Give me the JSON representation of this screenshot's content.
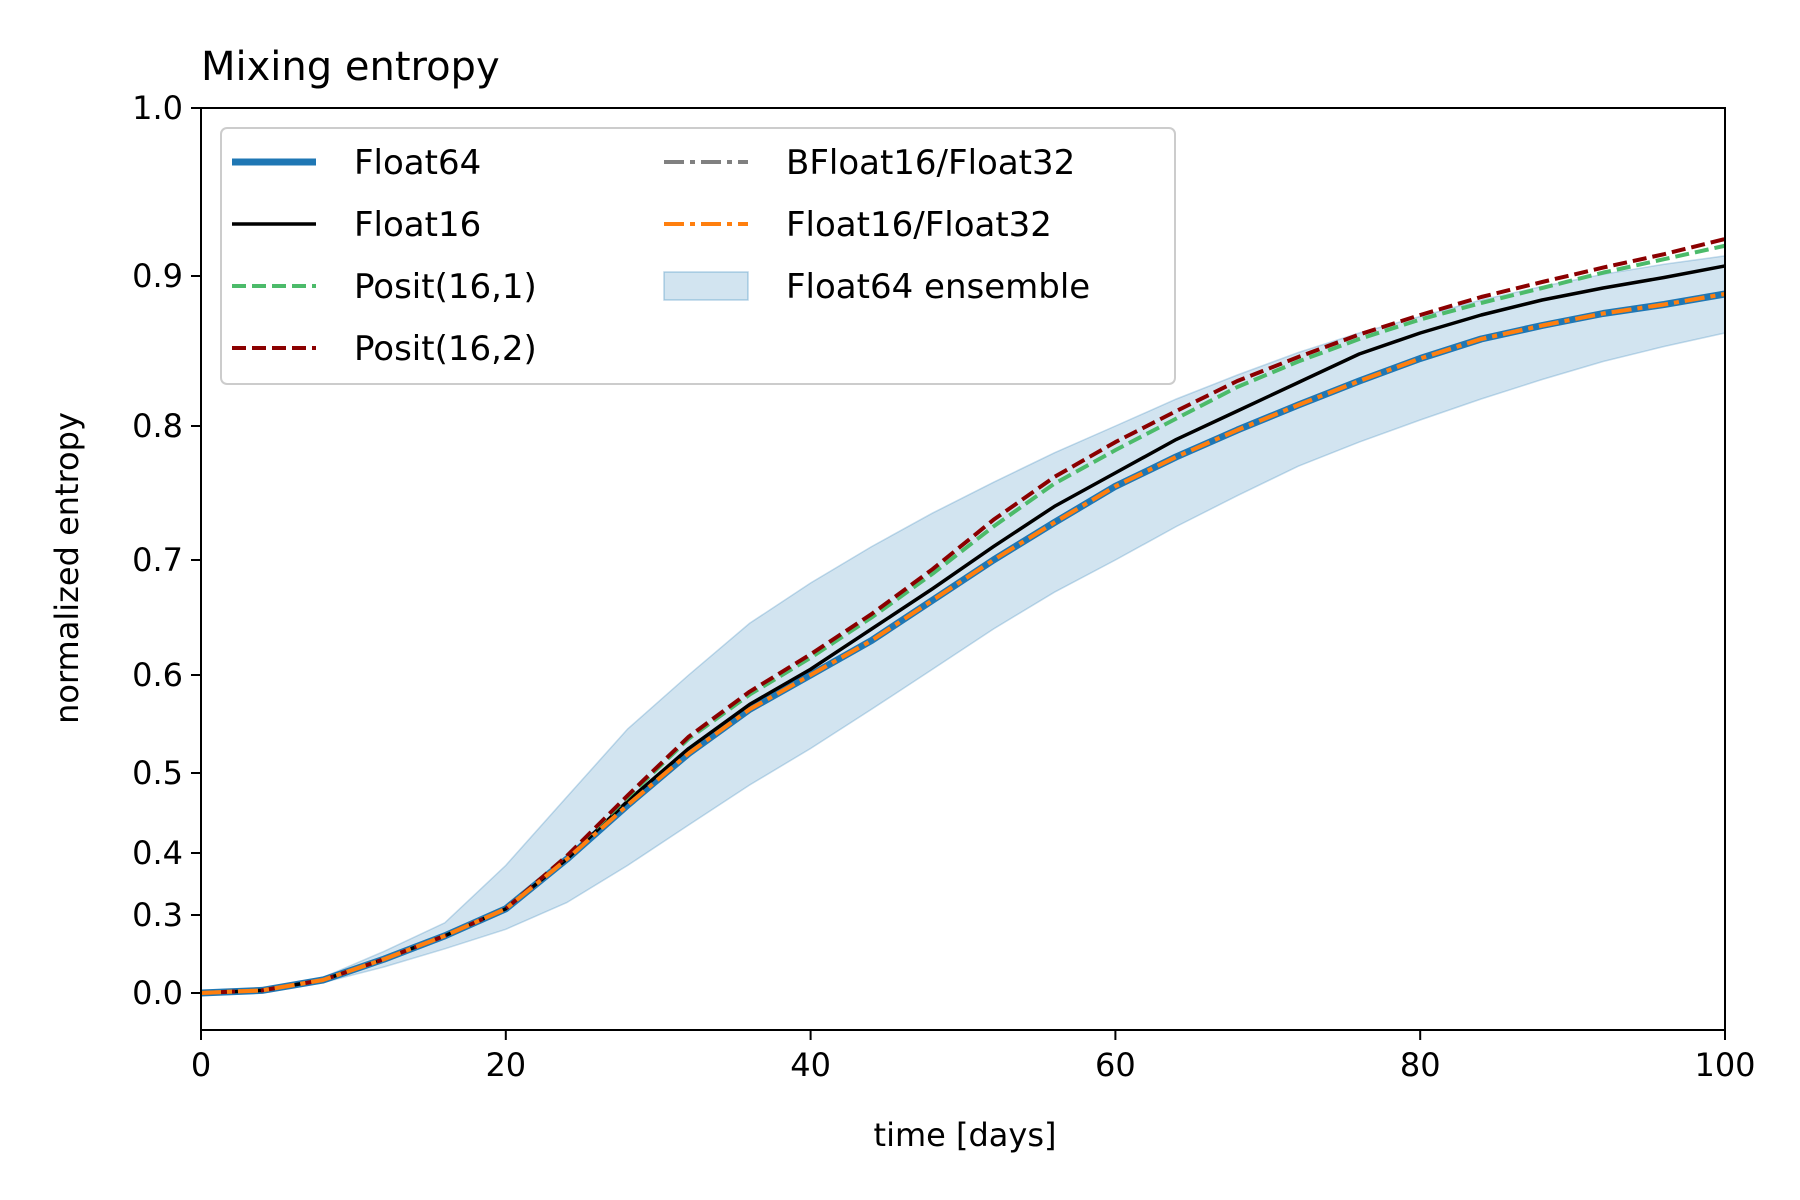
{
  "chart_data": {
    "type": "line",
    "title": "Mixing entropy",
    "xlabel": "time [days]",
    "ylabel": "normalized entropy",
    "xlim": [
      0,
      100
    ],
    "ylim": [
      -0.05,
      1.0
    ],
    "y_scale": "nonlinear (tick labels unevenly spaced)",
    "xticks": [
      0,
      20,
      40,
      60,
      80,
      100
    ],
    "xtick_labels": [
      "0",
      "20",
      "40",
      "60",
      "80",
      "100"
    ],
    "yticks": [
      0.0,
      0.3,
      0.4,
      0.5,
      0.6,
      0.7,
      0.8,
      0.9,
      1.0
    ],
    "ytick_labels": [
      "0.0",
      "0.3",
      "0.4",
      "0.5",
      "0.6",
      "0.7",
      "0.8",
      "0.9",
      "1.0"
    ],
    "grid": false,
    "legend_position": "top-left",
    "x": [
      0,
      4,
      8,
      12,
      16,
      20,
      24,
      28,
      32,
      36,
      40,
      44,
      48,
      52,
      56,
      60,
      64,
      68,
      72,
      76,
      80,
      84,
      88,
      92,
      96,
      100
    ],
    "series": [
      {
        "name": "Float64",
        "color": "#1f77b4",
        "style": "solid-thick",
        "values": [
          0.0,
          0.01,
          0.05,
          0.13,
          0.22,
          0.31,
          0.39,
          0.46,
          0.52,
          0.565,
          0.6,
          0.63,
          0.665,
          0.7,
          0.728,
          0.755,
          0.777,
          0.797,
          0.814,
          0.83,
          0.845,
          0.858,
          0.867,
          0.875,
          0.881,
          0.888
        ]
      },
      {
        "name": "Float16",
        "color": "#000000",
        "style": "solid",
        "values": [
          0.0,
          0.01,
          0.05,
          0.13,
          0.22,
          0.31,
          0.39,
          0.465,
          0.525,
          0.57,
          0.605,
          0.64,
          0.675,
          0.71,
          0.74,
          0.765,
          0.79,
          0.81,
          0.829,
          0.848,
          0.862,
          0.874,
          0.884,
          0.892,
          0.899,
          0.906
        ]
      },
      {
        "name": "Posit(16,1)",
        "color": "#4cbb6a",
        "style": "dashed",
        "values": [
          0.0,
          0.01,
          0.05,
          0.13,
          0.22,
          0.31,
          0.395,
          0.47,
          0.535,
          0.58,
          0.615,
          0.65,
          0.688,
          0.725,
          0.757,
          0.782,
          0.805,
          0.826,
          0.843,
          0.858,
          0.871,
          0.882,
          0.892,
          0.902,
          0.91,
          0.918
        ]
      },
      {
        "name": "Posit(16,2)",
        "color": "#8b0000",
        "style": "dashed",
        "values": [
          0.0,
          0.01,
          0.05,
          0.13,
          0.22,
          0.31,
          0.395,
          0.472,
          0.537,
          0.583,
          0.618,
          0.653,
          0.692,
          0.73,
          0.762,
          0.788,
          0.81,
          0.83,
          0.846,
          0.861,
          0.874,
          0.886,
          0.896,
          0.905,
          0.913,
          0.922
        ]
      },
      {
        "name": "BFloat16/Float32",
        "color": "#808080",
        "style": "dashdot",
        "values": [
          0.0,
          0.01,
          0.05,
          0.13,
          0.22,
          0.31,
          0.39,
          0.46,
          0.52,
          0.565,
          0.6,
          0.63,
          0.665,
          0.7,
          0.728,
          0.755,
          0.777,
          0.797,
          0.814,
          0.83,
          0.845,
          0.858,
          0.867,
          0.875,
          0.881,
          0.888
        ]
      },
      {
        "name": "Float16/Float32",
        "color": "#ff7f0e",
        "style": "dashdot",
        "values": [
          0.0,
          0.01,
          0.05,
          0.13,
          0.22,
          0.31,
          0.39,
          0.46,
          0.52,
          0.565,
          0.6,
          0.63,
          0.665,
          0.7,
          0.728,
          0.755,
          0.777,
          0.797,
          0.814,
          0.83,
          0.845,
          0.858,
          0.867,
          0.875,
          0.881,
          0.888
        ]
      }
    ],
    "band": {
      "name": "Float64 ensemble",
      "color": "#1f77b4",
      "lower": [
        0.0,
        0.008,
        0.04,
        0.1,
        0.17,
        0.245,
        0.32,
        0.38,
        0.435,
        0.485,
        0.525,
        0.565,
        0.605,
        0.64,
        0.672,
        0.7,
        0.725,
        0.748,
        0.77,
        0.788,
        0.804,
        0.818,
        0.831,
        0.843,
        0.853,
        0.862
      ],
      "upper": [
        0.0,
        0.012,
        0.06,
        0.16,
        0.27,
        0.38,
        0.47,
        0.545,
        0.6,
        0.645,
        0.68,
        0.71,
        0.735,
        0.758,
        0.78,
        0.8,
        0.818,
        0.834,
        0.849,
        0.862,
        0.873,
        0.884,
        0.893,
        0.901,
        0.907,
        0.912
      ]
    }
  }
}
